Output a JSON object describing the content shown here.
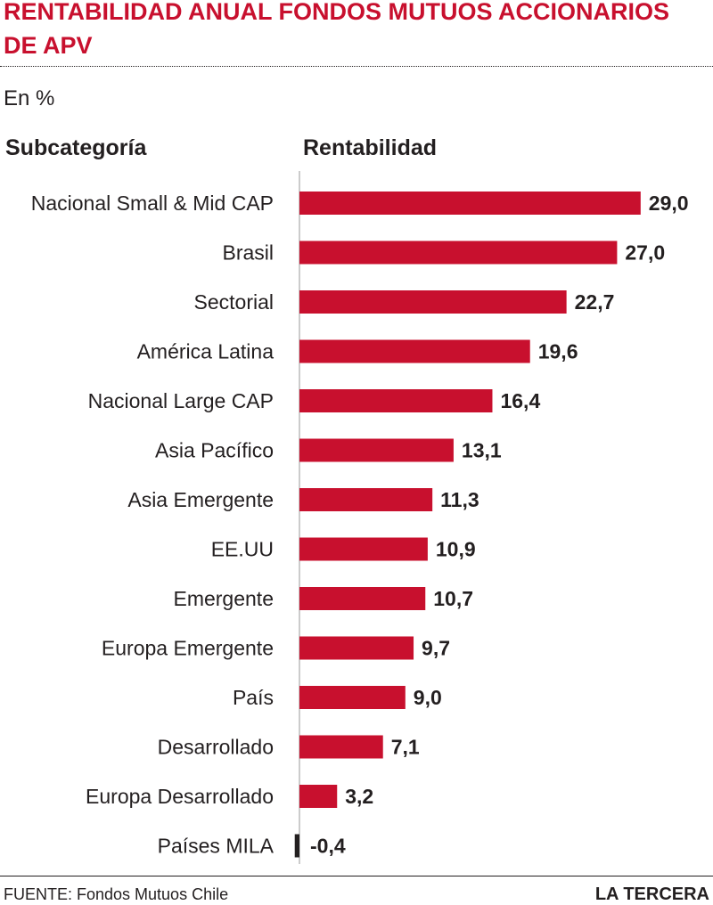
{
  "header": {
    "title": "RENTABILIDAD ANUAL FONDOS MUTUOS ACCIONARIOS DE APV",
    "unit": "En %",
    "col_category": "Subcategoría",
    "col_value": "Rentabilidad"
  },
  "footer": {
    "source": "FUENTE:  Fondos Mutuos Chile",
    "brand": "LA TERCERA"
  },
  "colors": {
    "bar": "#c8102e",
    "negative_bar": "#231f20",
    "axis": "#9a9a9a"
  },
  "chart_data": {
    "type": "bar",
    "orientation": "horizontal",
    "title": "RENTABILIDAD ANUAL FONDOS MUTUOS ACCIONARIOS DE APV",
    "xlabel": "Rentabilidad",
    "ylabel": "Subcategoría",
    "categories": [
      "Nacional Small & Mid CAP",
      "Brasil",
      "Sectorial",
      "América Latina",
      "Nacional Large CAP",
      "Asia Pacífico",
      "Asia Emergente",
      "EE.UU",
      "Emergente",
      "Europa Emergente",
      "País",
      "Desarrollado",
      "Europa Desarrollado",
      "Países MILA"
    ],
    "values": [
      29.0,
      27.0,
      22.7,
      19.6,
      16.4,
      13.1,
      11.3,
      10.9,
      10.7,
      9.7,
      9.0,
      7.1,
      3.2,
      -0.4
    ],
    "value_labels": [
      "29,0",
      "27,0",
      "22,7",
      "19,6",
      "16,4",
      "13,1",
      "11,3",
      "10,9",
      "10,7",
      "9,7",
      "9,0",
      "7,1",
      "3,2",
      "-0,4"
    ],
    "xlim": [
      -0.4,
      29.0
    ],
    "grid": false,
    "legend": "none"
  }
}
